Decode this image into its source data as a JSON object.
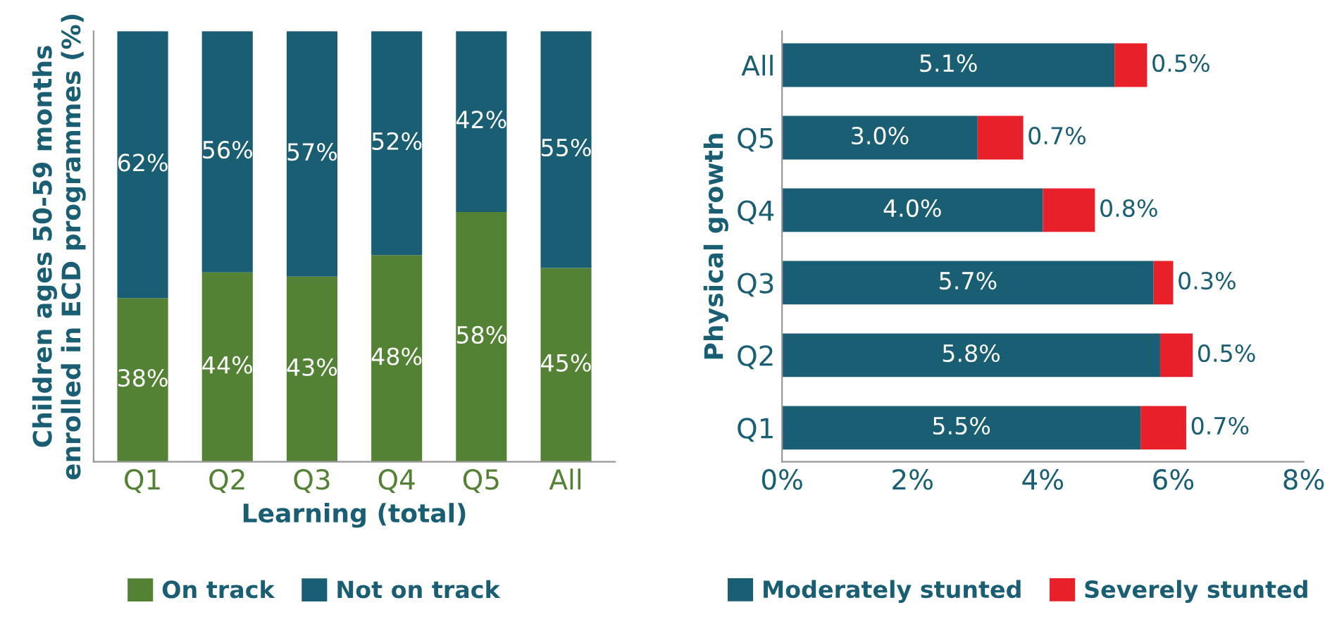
{
  "chart_data": [
    {
      "type": "bar",
      "stacked": true,
      "xlabel": "Learning (total)",
      "ylabel": "Children ages 50-59 months enrolled in ECD programmes (%)",
      "categories": [
        "Q1",
        "Q2",
        "Q3",
        "Q4",
        "Q5",
        "All"
      ],
      "legend": "bottom",
      "tick_labels": "x",
      "series": [
        {
          "name": "On track",
          "color": "#548235",
          "values": [
            38,
            44,
            43,
            48,
            58,
            45
          ],
          "value_labels": [
            "38%",
            "44%",
            "43%",
            "48%",
            "58%",
            "45%"
          ]
        },
        {
          "name": "Not on track",
          "color": "#1a5e73",
          "values": [
            62,
            56,
            57,
            52,
            42,
            55
          ],
          "value_labels": [
            "62%",
            "56%",
            "57%",
            "52%",
            "42%",
            "55%"
          ]
        }
      ]
    },
    {
      "type": "bar",
      "stacked": true,
      "orientation": "horizontal",
      "ylabel": "Physical growth",
      "categories": [
        "All",
        "Q5",
        "Q4",
        "Q3",
        "Q2",
        "Q1"
      ],
      "legend": "bottom",
      "xlim": [
        0,
        8
      ],
      "xticks": [
        {
          "value": 0,
          "label": "0%"
        },
        {
          "value": 2,
          "label": "2%"
        },
        {
          "value": 4,
          "label": "4%"
        },
        {
          "value": 6,
          "label": "6%"
        },
        {
          "value": 8,
          "label": "8%"
        }
      ],
      "series": [
        {
          "name": "Moderately stunted",
          "color": "#1a5e73",
          "values": [
            5.1,
            3.0,
            4.0,
            5.7,
            5.8,
            5.5
          ],
          "value_labels": [
            "5.1%",
            "3.0%",
            "4.0%",
            "5.7%",
            "5.8%",
            "5.5%"
          ]
        },
        {
          "name": "Severely stunted",
          "color": "#e8202a",
          "values": [
            0.5,
            0.7,
            0.8,
            0.3,
            0.5,
            0.7
          ],
          "value_labels": [
            "0.5%",
            "0.7%",
            "0.8%",
            "0.3%",
            "0.5%",
            "0.7%"
          ]
        }
      ]
    }
  ]
}
